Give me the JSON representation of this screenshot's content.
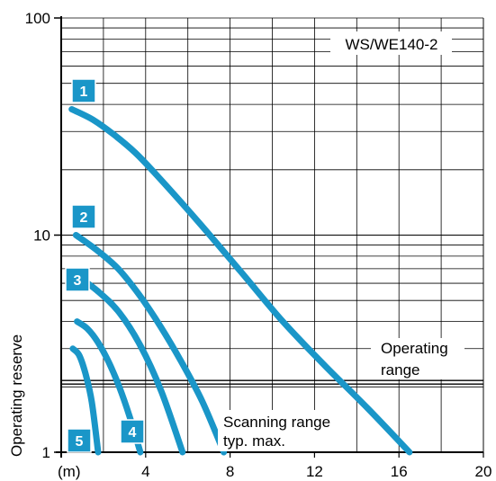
{
  "chart_data": {
    "type": "line",
    "title": "WS/WE140-2",
    "ylabel": "Operating reserve",
    "xunit_label": "(m)",
    "xlim": [
      0,
      20
    ],
    "ylim": [
      1,
      100
    ],
    "y_scale": "log",
    "x_ticks": [
      "4",
      "8",
      "12",
      "16",
      "20"
    ],
    "y_ticks": [
      "1",
      "10",
      "100"
    ],
    "grid": true,
    "operating_range_level": 2.1,
    "annotations": {
      "operating_range": [
        "Operating",
        "range"
      ],
      "scanning_range": [
        "Scanning range",
        "typ. max."
      ]
    },
    "line_color": "#1a96c8",
    "badge_color": "#1a96c8",
    "series": [
      {
        "badge": "1",
        "x": [
          0,
          1,
          2,
          3,
          4,
          6,
          8,
          10,
          12,
          14,
          16
        ],
        "y": [
          38,
          34,
          29,
          24,
          19,
          11.5,
          6.8,
          4,
          2.5,
          1.6,
          1
        ]
      },
      {
        "badge": "2",
        "x": [
          0,
          1,
          2,
          3,
          4,
          5,
          6,
          7
        ],
        "y": [
          10,
          8.5,
          7,
          5.3,
          3.8,
          2.6,
          1.7,
          1
        ]
      },
      {
        "badge": "3",
        "x": [
          0,
          1,
          2,
          3,
          4,
          5
        ],
        "y": [
          6.5,
          5.5,
          4.4,
          3.1,
          1.9,
          1
        ]
      },
      {
        "badge": "4",
        "x": [
          0,
          0.5,
          1,
          1.5,
          2,
          2.5,
          3
        ],
        "y": [
          4,
          3.7,
          3.2,
          2.6,
          2,
          1.45,
          1
        ]
      },
      {
        "badge": "5",
        "x": [
          0,
          0.3,
          0.6,
          0.9,
          1.2
        ],
        "y": [
          3,
          2.8,
          2.3,
          1.7,
          1
        ]
      }
    ]
  }
}
